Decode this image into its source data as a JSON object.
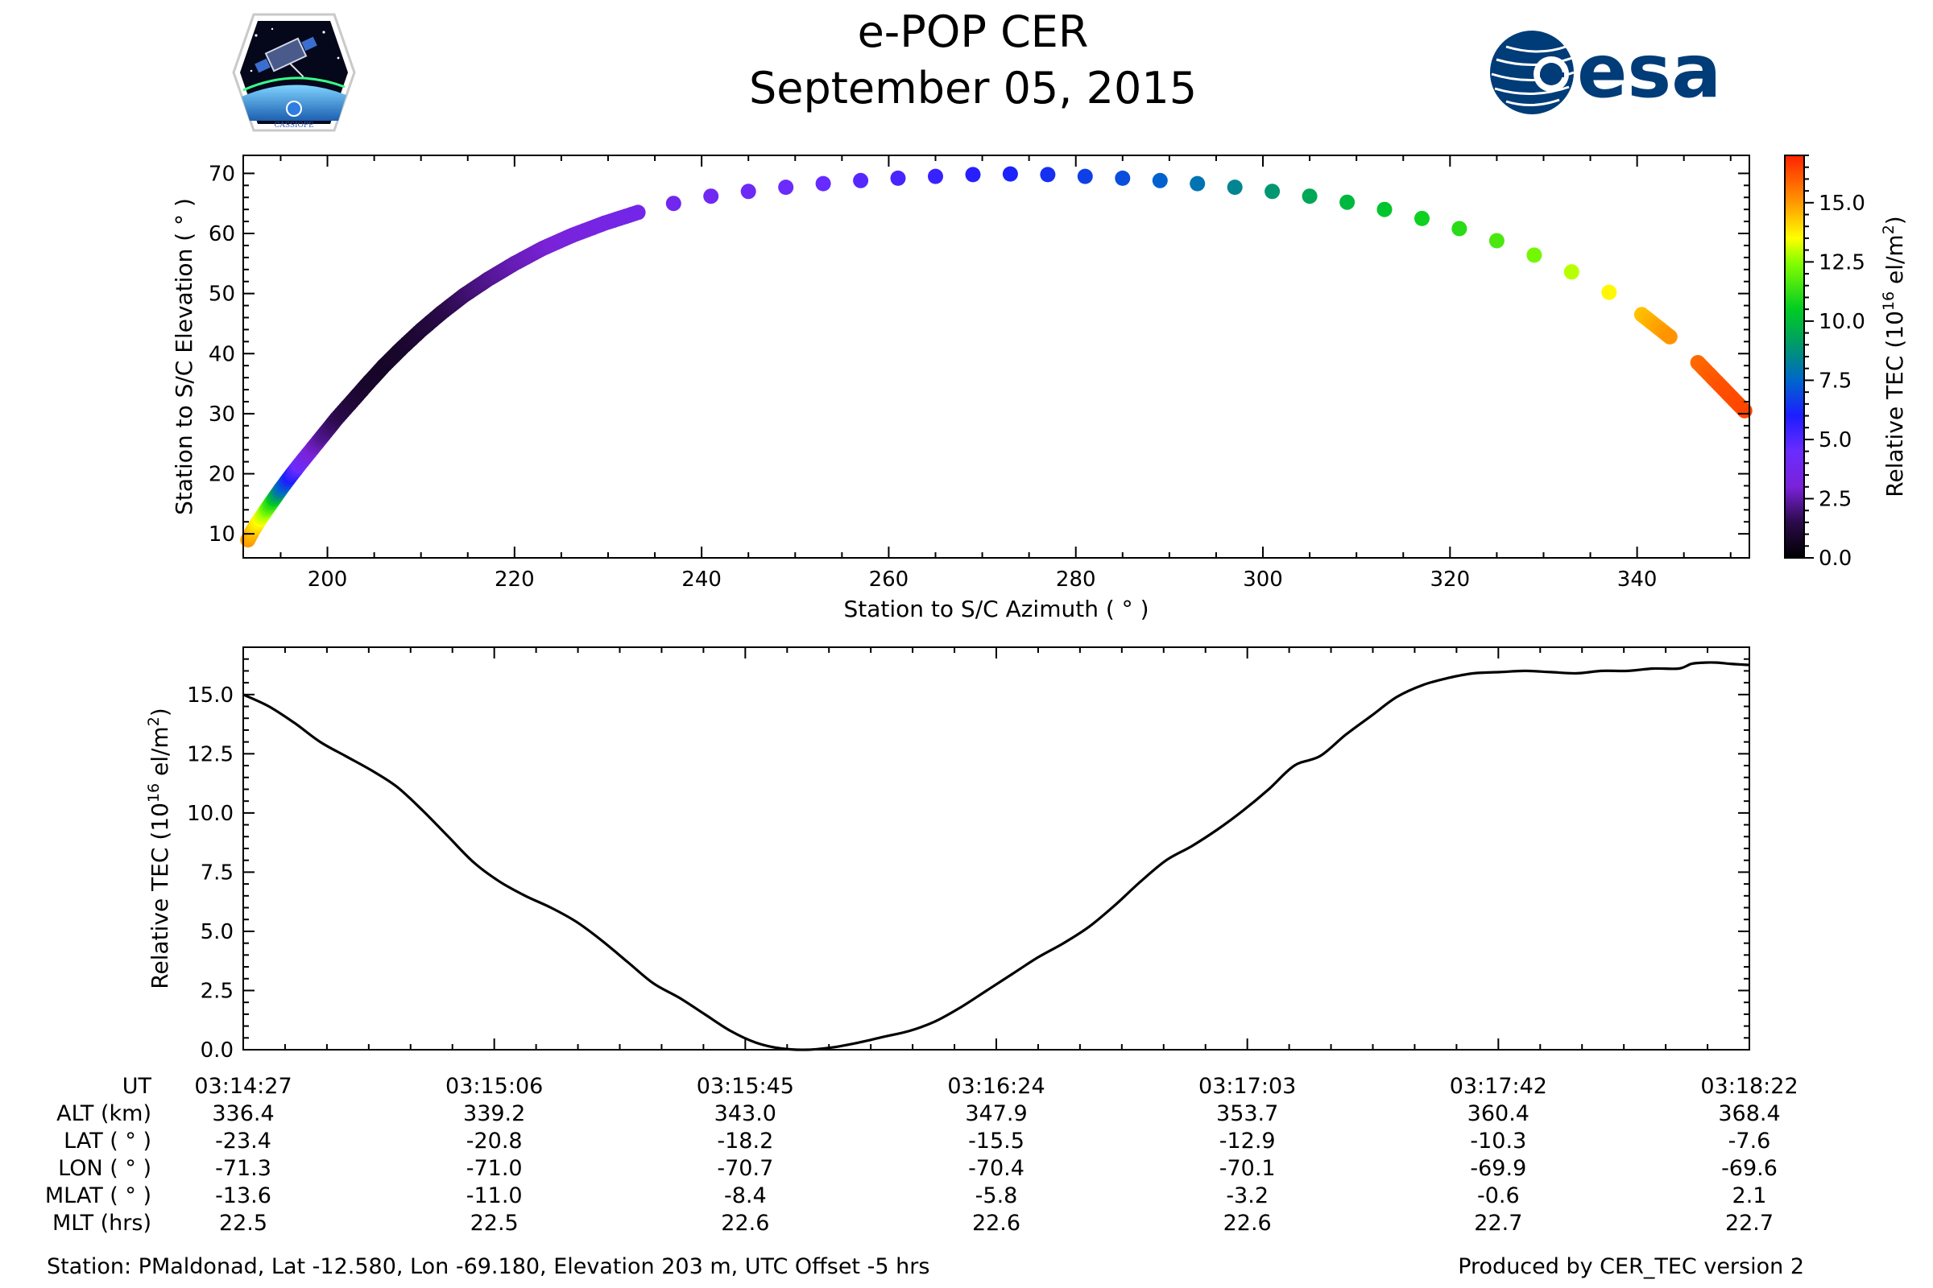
{
  "header": {
    "title": "e-POP CER",
    "subtitle": "September 05, 2015",
    "left_logo": {
      "icon": "cassiope-mission-patch-icon",
      "text": "CASSIOPE"
    },
    "right_logo": {
      "icon": "esa-logo-icon",
      "text": "esa",
      "color": "#003c78"
    }
  },
  "chart_data": [
    {
      "type": "scatter",
      "xlabel": "Station to S/C Azimuth ( ° )",
      "ylabel": "Station to S/C Elevation ( ° )",
      "xlim": [
        191,
        352
      ],
      "ylim": [
        6,
        73
      ],
      "xticks": [
        200,
        220,
        240,
        260,
        280,
        300,
        320,
        340
      ],
      "yticks": [
        10,
        20,
        30,
        40,
        50,
        60,
        70
      ],
      "grid": false,
      "color_by": "Relative TEC",
      "colormap": "gnuplot-like (black → purple → blue → teal → green → yellow → orange → red)",
      "colorbar": {
        "label_prefix": "Relative TEC (10",
        "label_sup1": "16",
        "label_mid": " el/m",
        "label_sup2": "2",
        "label_suffix": ")",
        "range": [
          0,
          17
        ],
        "ticks": [
          "0.0",
          "2.5",
          "5.0",
          "7.5",
          "10.0",
          "12.5",
          "15.0"
        ],
        "stops": [
          {
            "v": 0,
            "c": "#000000"
          },
          {
            "v": 1.5,
            "c": "#2a0a4a"
          },
          {
            "v": 3.0,
            "c": "#7a22d8"
          },
          {
            "v": 4.5,
            "c": "#6a2cff"
          },
          {
            "v": 6.0,
            "c": "#1d1dff"
          },
          {
            "v": 7.5,
            "c": "#0066cc"
          },
          {
            "v": 9.0,
            "c": "#009a6a"
          },
          {
            "v": 10.5,
            "c": "#00cc22"
          },
          {
            "v": 12.5,
            "c": "#88ff00"
          },
          {
            "v": 13.5,
            "c": "#ffff00"
          },
          {
            "v": 15.0,
            "c": "#ff9900"
          },
          {
            "v": 17.0,
            "c": "#ff2200"
          }
        ]
      },
      "points": [
        [
          191.5,
          9.0,
          15.0
        ],
        [
          192.0,
          10.5,
          14.5
        ],
        [
          192.6,
          12.0,
          13.7
        ],
        [
          193.3,
          13.6,
          12.8
        ],
        [
          194.1,
          15.4,
          11.0
        ],
        [
          195.0,
          17.4,
          8.0
        ],
        [
          196.0,
          19.5,
          6.0
        ],
        [
          197.1,
          21.7,
          4.2
        ],
        [
          198.3,
          24.0,
          3.0
        ],
        [
          199.6,
          26.5,
          2.2
        ],
        [
          201.0,
          29.2,
          1.6
        ],
        [
          202.6,
          32.0,
          1.2
        ],
        [
          204.3,
          35.0,
          0.9
        ],
        [
          206.0,
          37.9,
          0.8
        ],
        [
          208.0,
          41.0,
          0.9
        ],
        [
          210.0,
          43.9,
          1.1
        ],
        [
          212.2,
          46.8,
          1.4
        ],
        [
          214.6,
          49.7,
          1.8
        ],
        [
          217.2,
          52.4,
          2.2
        ],
        [
          220.0,
          55.0,
          2.6
        ],
        [
          223.0,
          57.5,
          2.9
        ],
        [
          226.2,
          59.7,
          3.2
        ],
        [
          229.6,
          61.7,
          3.4
        ],
        [
          233.2,
          63.5,
          3.6
        ],
        [
          237.0,
          65.0,
          3.8
        ],
        [
          241.0,
          66.2,
          4.0
        ],
        [
          245.0,
          67.0,
          4.2
        ],
        [
          249.0,
          67.7,
          4.4
        ],
        [
          253.0,
          68.3,
          4.6
        ],
        [
          257.0,
          68.8,
          4.9
        ],
        [
          261.0,
          69.2,
          5.2
        ],
        [
          265.0,
          69.5,
          5.5
        ],
        [
          269.0,
          69.8,
          5.8
        ],
        [
          273.0,
          69.9,
          6.1
        ],
        [
          277.0,
          69.8,
          6.4
        ],
        [
          281.0,
          69.5,
          6.7
        ],
        [
          285.0,
          69.2,
          7.0
        ],
        [
          289.0,
          68.8,
          7.4
        ],
        [
          293.0,
          68.3,
          7.9
        ],
        [
          297.0,
          67.7,
          8.4
        ],
        [
          301.0,
          67.0,
          8.9
        ],
        [
          305.0,
          66.2,
          9.4
        ],
        [
          309.0,
          65.2,
          9.9
        ],
        [
          313.0,
          64.0,
          10.3
        ],
        [
          317.0,
          62.5,
          10.7
        ],
        [
          321.0,
          60.8,
          11.1
        ],
        [
          325.0,
          58.8,
          11.6
        ],
        [
          329.0,
          56.4,
          12.2
        ],
        [
          333.0,
          53.6,
          12.9
        ],
        [
          337.0,
          50.2,
          13.6
        ],
        [
          340.5,
          46.5,
          14.4
        ],
        [
          343.5,
          42.8,
          15.1
        ],
        [
          346.5,
          38.5,
          15.8
        ],
        [
          349.0,
          34.5,
          16.2
        ],
        [
          351.5,
          30.5,
          16.4
        ]
      ]
    },
    {
      "type": "line",
      "xlabel": "",
      "ylabel_prefix": "Relative TEC (10",
      "ylabel_sup1": "16",
      "ylabel_mid": " el/m",
      "ylabel_sup2": "2",
      "ylabel_suffix": ")",
      "xlim": [
        0,
        235
      ],
      "ylim": [
        0,
        17
      ],
      "yticks": [
        "0.0",
        "2.5",
        "5.0",
        "7.5",
        "10.0",
        "12.5",
        "15.0"
      ],
      "x_unit": "seconds after 03:14:27",
      "grid": false,
      "color": "#000000",
      "x": [
        0,
        4,
        8,
        12,
        16,
        20,
        24,
        28,
        32,
        36,
        40,
        44,
        48,
        52,
        56,
        60,
        64,
        68,
        72,
        76,
        80,
        84,
        88,
        92,
        96,
        100,
        104,
        108,
        112,
        116,
        120,
        124,
        128,
        132,
        136,
        140,
        144,
        148,
        152,
        156,
        160,
        164,
        168,
        172,
        176,
        180,
        184,
        188,
        192,
        196,
        200,
        204,
        208,
        212,
        216,
        220,
        224,
        226,
        228,
        230,
        232,
        235
      ],
      "y": [
        15.0,
        14.5,
        13.8,
        13.0,
        12.4,
        11.8,
        11.1,
        10.1,
        9.0,
        7.9,
        7.1,
        6.5,
        6.0,
        5.4,
        4.6,
        3.7,
        2.8,
        2.2,
        1.5,
        0.8,
        0.3,
        0.05,
        0.0,
        0.1,
        0.3,
        0.55,
        0.8,
        1.2,
        1.8,
        2.5,
        3.2,
        3.9,
        4.5,
        5.2,
        6.1,
        7.1,
        8.0,
        8.6,
        9.3,
        10.1,
        11.0,
        12.0,
        12.4,
        13.3,
        14.1,
        14.9,
        15.4,
        15.7,
        15.9,
        15.95,
        16.0,
        15.95,
        15.9,
        16.0,
        16.0,
        16.1,
        16.1,
        16.3,
        16.35,
        16.35,
        16.3,
        16.25
      ]
    }
  ],
  "table": {
    "row_labels": [
      "UT",
      "ALT (km)",
      "LAT ( ° )",
      "LON ( ° )",
      "MLAT ( ° )",
      "MLT (hrs)"
    ],
    "columns": [
      {
        "ut": "03:14:27",
        "alt": "336.4",
        "lat": "-23.4",
        "lon": "-71.3",
        "mlat": "-13.6",
        "mlt": "22.5"
      },
      {
        "ut": "03:15:06",
        "alt": "339.2",
        "lat": "-20.8",
        "lon": "-71.0",
        "mlat": "-11.0",
        "mlt": "22.5"
      },
      {
        "ut": "03:15:45",
        "alt": "343.0",
        "lat": "-18.2",
        "lon": "-70.7",
        "mlat": "-8.4",
        "mlt": "22.6"
      },
      {
        "ut": "03:16:24",
        "alt": "347.9",
        "lat": "-15.5",
        "lon": "-70.4",
        "mlat": "-5.8",
        "mlt": "22.6"
      },
      {
        "ut": "03:17:03",
        "alt": "353.7",
        "lat": "-12.9",
        "lon": "-70.1",
        "mlat": "-3.2",
        "mlt": "22.6"
      },
      {
        "ut": "03:17:42",
        "alt": "360.4",
        "lat": "-10.3",
        "lon": "-69.9",
        "mlat": "-0.6",
        "mlt": "22.7"
      },
      {
        "ut": "03:18:22",
        "alt": "368.4",
        "lat": "-7.6",
        "lon": "-69.6",
        "mlat": "2.1",
        "mlt": "22.7"
      }
    ]
  },
  "footer": {
    "station": "Station: PMaldonad, Lat -12.580, Lon -69.180, Elevation 203 m, UTC Offset -5 hrs",
    "produced": "Produced by CER_TEC version 2"
  }
}
